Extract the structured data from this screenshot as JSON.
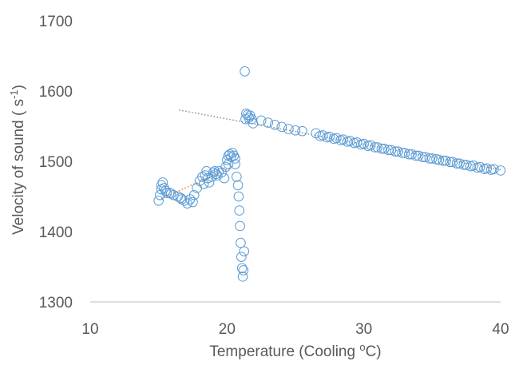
{
  "chart_data": {
    "type": "scatter",
    "title": "",
    "xlabel": {
      "pre": "Temperature (Cooling ",
      "sup": "o",
      "post": "C)"
    },
    "ylabel": {
      "pre": "Velocity of sound ( s",
      "sup": "-1",
      "post": ")"
    },
    "xlim": [
      10,
      40
    ],
    "ylim": [
      1300,
      1700
    ],
    "xticks": [
      "10",
      "20",
      "30",
      "40"
    ],
    "yticks": [
      "1300",
      "1400",
      "1500",
      "1600",
      "1700"
    ],
    "grid": false,
    "legend": "none",
    "colors": {
      "marker": "#5b9bd5",
      "trend_low": "#ed7d31",
      "trend_high": "#8c8c8c",
      "axis": "#bfbfbf",
      "text": "#595959"
    },
    "series": [
      {
        "marker": "open-circle",
        "x": [
          15.0,
          15.1,
          15.2,
          15.3,
          15.4,
          15.5,
          15.6,
          15.9,
          16.1,
          16.4,
          16.6,
          16.9,
          17.1,
          17.3,
          17.6,
          17.8,
          18.0,
          18.2,
          18.4,
          18.5,
          18.6,
          18.7,
          18.9,
          19.0,
          19.1,
          19.2,
          19.4,
          19.6,
          19.8,
          19.9,
          20.0,
          20.1,
          20.2,
          20.3,
          20.4,
          20.5,
          20.6,
          20.7,
          20.8,
          20.85,
          20.9,
          20.95,
          21.0,
          21.05,
          21.1,
          21.15,
          21.2,
          21.25,
          21.3,
          21.35,
          21.4,
          21.5,
          21.6,
          21.7,
          21.8,
          21.9,
          22.5,
          23.0,
          23.5,
          24.0,
          24.5,
          25.0,
          25.5,
          26.5,
          27.0,
          27.5,
          28.0,
          28.5,
          29.0,
          29.5,
          30.0,
          30.5,
          31.0,
          31.5,
          32.0,
          32.5,
          33.0,
          33.5,
          34.0,
          34.5,
          35.0,
          35.5,
          36.0,
          36.5,
          37.0,
          37.5,
          38.0,
          38.5,
          39.0,
          39.5,
          40.0,
          15.2,
          15.8,
          16.7,
          17.5,
          18.3,
          19.3,
          20.1,
          20.6,
          26.8,
          27.3,
          27.8,
          28.3,
          28.8,
          29.3,
          29.8,
          30.3,
          30.8,
          31.3,
          31.8,
          32.3,
          32.8,
          33.3,
          33.8,
          34.3,
          34.8,
          35.3,
          35.8,
          36.3,
          36.8,
          37.3,
          37.8,
          38.3,
          38.8,
          39.3
        ],
        "y": [
          1444,
          1452,
          1466,
          1470,
          1462,
          1458,
          1455,
          1454,
          1452,
          1450,
          1448,
          1444,
          1440,
          1446,
          1452,
          1462,
          1472,
          1478,
          1480,
          1486,
          1476,
          1470,
          1478,
          1484,
          1486,
          1482,
          1486,
          1484,
          1476,
          1492,
          1502,
          1508,
          1510,
          1506,
          1512,
          1508,
          1496,
          1478,
          1466,
          1450,
          1430,
          1408,
          1384,
          1364,
          1348,
          1336,
          1345,
          1372,
          1628,
          1560,
          1568,
          1566,
          1562,
          1565,
          1560,
          1554,
          1558,
          1555,
          1552,
          1549,
          1546,
          1544,
          1543,
          1540,
          1537,
          1535,
          1533,
          1531,
          1529,
          1527,
          1525,
          1523,
          1520,
          1518,
          1516,
          1514,
          1512,
          1510,
          1508,
          1506,
          1504,
          1502,
          1501,
          1499,
          1497,
          1495,
          1494,
          1492,
          1490,
          1489,
          1487,
          1460,
          1455,
          1446,
          1442,
          1468,
          1480,
          1496,
          1504,
          1536,
          1534,
          1532,
          1530,
          1528,
          1526,
          1524,
          1522,
          1520,
          1518,
          1516,
          1514,
          1512,
          1510,
          1508,
          1506,
          1504,
          1503,
          1501,
          1499,
          1497,
          1495,
          1493,
          1491,
          1489,
          1488
        ]
      }
    ],
    "trendlines": [
      {
        "style": "dotted",
        "color": "#ed7d31",
        "x": [
          15.2,
          20.3
        ],
        "y": [
          1447,
          1491
        ]
      },
      {
        "style": "dotted",
        "color": "#8c8c8c",
        "x": [
          16.5,
          40.0
        ],
        "y": [
          1573,
          1488
        ]
      }
    ]
  }
}
